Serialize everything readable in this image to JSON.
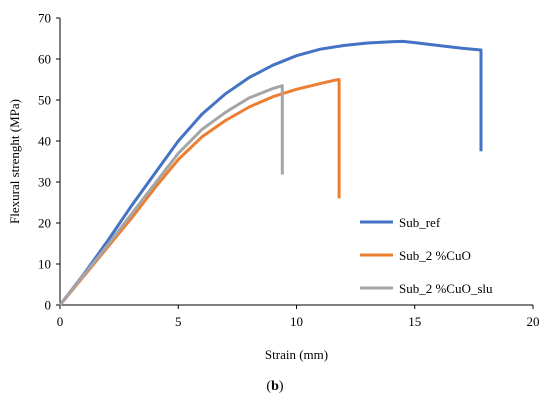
{
  "caption": {
    "open": "(",
    "letter": "b",
    "close": ")"
  },
  "chart_data": {
    "type": "line",
    "xlabel": "Strain (mm)",
    "ylabel": "Flexural strenght (MPa)",
    "xlim": [
      0,
      20
    ],
    "ylim": [
      0,
      70
    ],
    "xticks": [
      0,
      5,
      10,
      15,
      20
    ],
    "yticks": [
      0,
      10,
      20,
      30,
      40,
      50,
      60,
      70
    ],
    "grid": false,
    "legend": "center-right",
    "series": [
      {
        "name": "Sub_ref",
        "color": "#4472C4",
        "x": [
          0,
          1,
          2,
          3,
          4,
          5,
          6,
          7,
          8,
          9,
          10,
          11,
          12,
          13,
          14,
          14.5,
          15,
          16,
          17,
          17.8,
          17.8
        ],
        "y": [
          0,
          7.5,
          15.5,
          24,
          32,
          40,
          46.5,
          51.5,
          55.5,
          58.5,
          60.8,
          62.4,
          63.3,
          63.9,
          64.2,
          64.3,
          64,
          63.3,
          62.6,
          62.2,
          37.5
        ]
      },
      {
        "name": "Sub_2 %CuO",
        "color": "#ED7D31",
        "x": [
          0,
          1,
          2,
          3,
          4,
          5,
          6,
          7,
          8,
          9,
          10,
          11,
          11.6,
          11.8,
          11.8
        ],
        "y": [
          0,
          7,
          14,
          21,
          28.5,
          35.5,
          41,
          45,
          48.3,
          50.8,
          52.6,
          54,
          54.8,
          55,
          26
        ]
      },
      {
        "name": "Sub_2 %CuO_slu",
        "color": "#A5A5A5",
        "x": [
          0,
          1,
          2,
          3,
          4,
          5,
          6,
          7,
          8,
          9,
          9.4,
          9.4
        ],
        "y": [
          0,
          7.3,
          14.5,
          22,
          29.5,
          37,
          42.8,
          47,
          50.5,
          52.8,
          53.5,
          31.8
        ]
      }
    ]
  }
}
